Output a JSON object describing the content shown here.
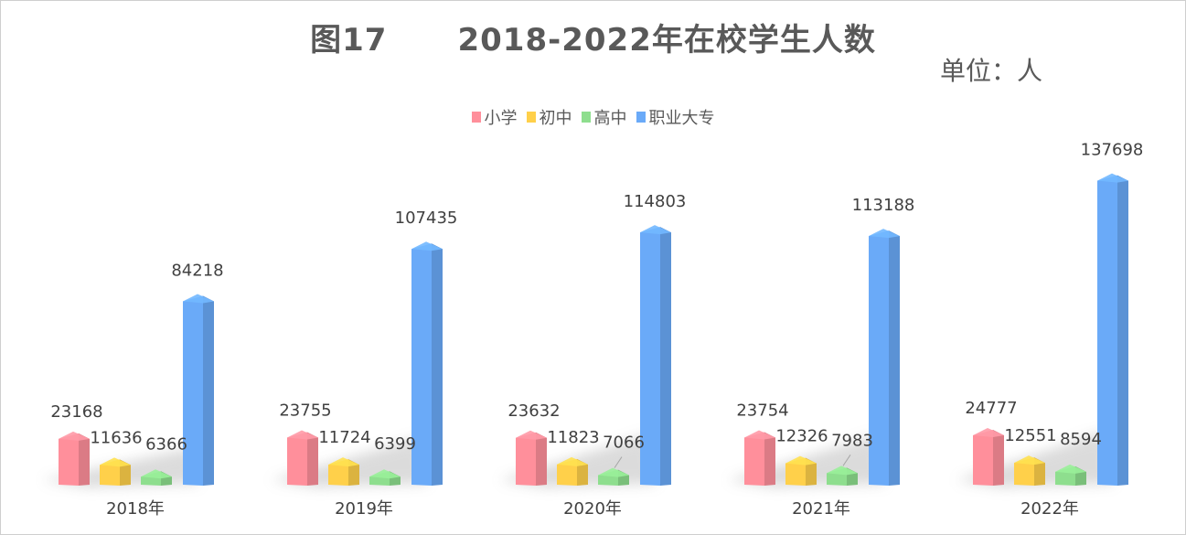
{
  "chart_data": {
    "type": "bar",
    "title": "图17      2018-2022年在校学生人数",
    "unit_label": "单位：人",
    "categories": [
      "2018年",
      "2019年",
      "2020年",
      "2021年",
      "2022年"
    ],
    "series": [
      {
        "name": "小学",
        "color": "#ff8f9b",
        "values": [
          23168,
          23755,
          23632,
          23754,
          24777
        ]
      },
      {
        "name": "初中",
        "color": "#ffd04a",
        "values": [
          11636,
          11724,
          11823,
          12326,
          12551
        ]
      },
      {
        "name": "高中",
        "color": "#8ede8e",
        "values": [
          6366,
          6399,
          7066,
          7983,
          8594
        ]
      },
      {
        "name": "职业大专",
        "color": "#6aaaf8",
        "values": [
          84218,
          107435,
          114803,
          113188,
          137698
        ]
      }
    ],
    "ylim": [
      0,
      140000
    ],
    "grid": false,
    "legend_position": "top"
  }
}
